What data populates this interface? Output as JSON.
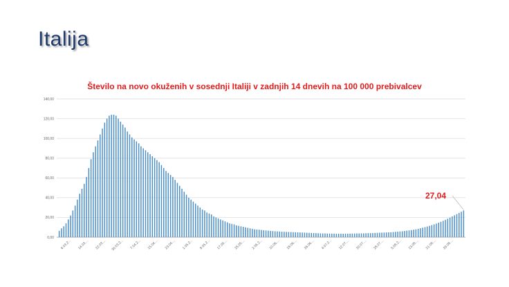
{
  "slide": {
    "title": "Italija"
  },
  "colors": {
    "bar": "#4a8ec8",
    "title": "#e31b1b",
    "grid": "#d9d9d9"
  },
  "chart_data": {
    "type": "bar",
    "title": "Število na novo okuženih v sosednji Italiji v zadnjih 14 dnevih  na 100 000 prebivalcev",
    "ylim": [
      0,
      140
    ],
    "y_ticks": [
      "0,00",
      "20,00",
      "40,00",
      "60,00",
      "80,00",
      "100,00",
      "120,00",
      "140,00"
    ],
    "y_tick_values": [
      0,
      20,
      40,
      60,
      80,
      100,
      120,
      140
    ],
    "x_tick_labels": [
      "6.03.2...",
      "14.03....",
      "22.03....",
      "30.03.2...",
      "7.04.2...",
      "15.04....",
      "23.04....",
      "1.05.2...",
      "9.05.2...",
      "17.05....",
      "25.05....",
      "2.06.2...",
      "10.06....",
      "18.06....",
      "26.06....",
      "4.07.2...",
      "12.07....",
      "20.07....",
      "28.07....",
      "5.08.2...",
      "13.08....",
      "21.08....",
      "29.08...."
    ],
    "grid": true,
    "callout": {
      "label": "27,04"
    },
    "values": [
      6.5,
      9,
      11,
      14,
      18,
      22,
      27,
      32,
      38,
      44,
      49,
      54,
      61,
      70,
      79,
      86,
      92,
      98,
      104,
      110,
      116,
      120,
      123,
      124,
      124,
      123,
      120,
      117,
      114,
      111,
      107,
      104,
      101,
      99,
      97,
      95,
      92,
      90,
      88,
      86,
      84,
      82,
      80,
      78,
      76,
      73,
      70,
      67,
      65,
      63,
      61,
      58,
      55,
      52,
      49,
      46,
      43,
      40,
      38,
      36,
      34,
      32,
      30,
      28,
      27,
      25,
      24,
      23,
      21,
      20,
      19,
      18,
      17,
      16,
      15,
      14,
      13.5,
      13,
      12,
      11.5,
      11,
      10.5,
      10,
      9.5,
      9,
      8.5,
      8,
      7.8,
      7.6,
      7.3,
      7,
      6.8,
      6.6,
      6.4,
      6.2,
      6,
      5.9,
      5.8,
      5.6,
      5.5,
      5.4,
      5.3,
      5.2,
      5.1,
      5,
      4.9,
      4.8,
      4.7,
      4.6,
      4.5,
      4.4,
      4.3,
      4.2,
      4.1,
      4,
      3.9,
      3.8,
      3.8,
      3.7,
      3.7,
      3.6,
      3.6,
      3.5,
      3.5,
      3.5,
      3.5,
      3.6,
      3.6,
      3.6,
      3.7,
      3.7,
      3.8,
      3.8,
      3.9,
      3.9,
      4,
      4.1,
      4.1,
      4.2,
      4.3,
      4.4,
      4.5,
      4.6,
      4.7,
      4.8,
      4.9,
      5,
      5.2,
      5.4,
      5.6,
      5.8,
      6,
      6.3,
      6.6,
      6.9,
      7.2,
      7.6,
      8,
      8.5,
      9,
      9.6,
      10.2,
      10.8,
      11.5,
      12.2,
      13,
      13.8,
      14.7,
      15.6,
      16.6,
      17.6,
      18.7,
      19.8,
      21,
      22.2,
      23.4,
      24.6,
      25.8,
      27.04
    ]
  }
}
